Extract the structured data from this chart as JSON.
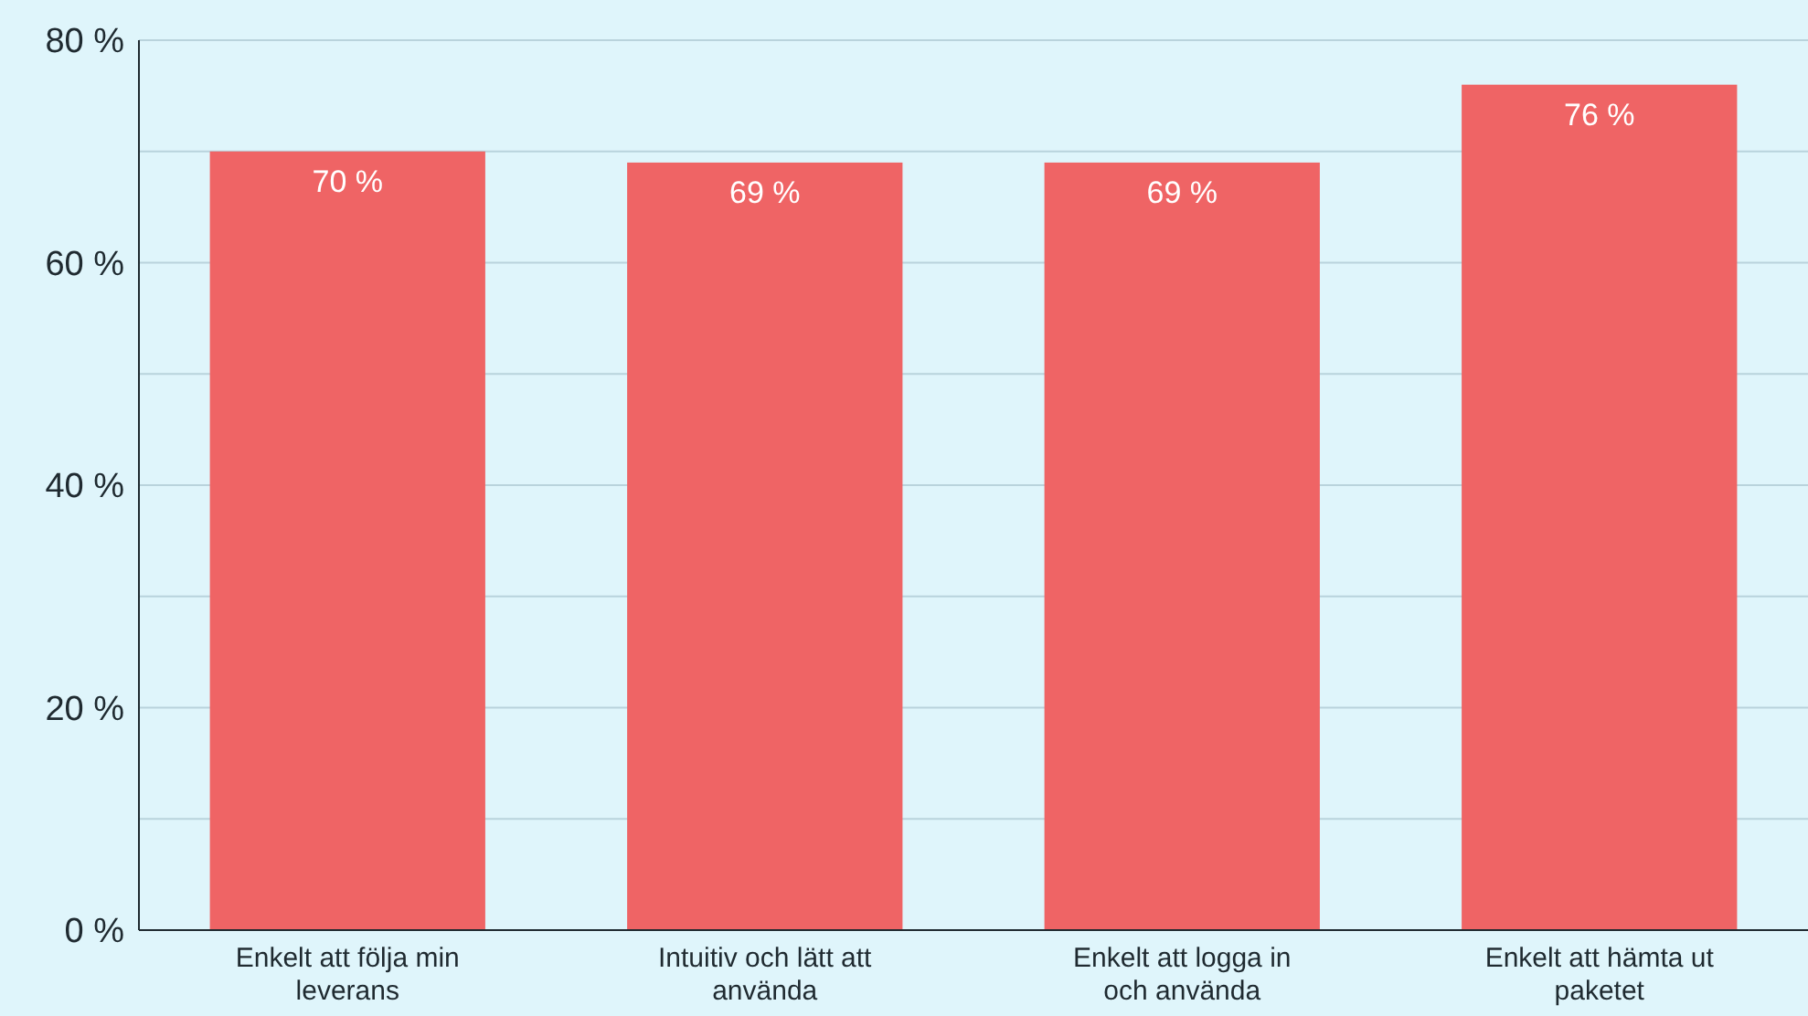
{
  "chart_data": {
    "type": "bar",
    "categories": [
      "Enkelt att följa min leverans",
      "Intuitiv och lätt att använda",
      "Enkelt att logga in och använda",
      "Enkelt att hämta ut paketet"
    ],
    "values": [
      70,
      69,
      69,
      76
    ],
    "value_labels": [
      "70 %",
      "69 %",
      "69 %",
      "76 %"
    ],
    "color": "#ef6465",
    "ylim": [
      0,
      80
    ],
    "yticks": [
      {
        "value": 0,
        "label": "0 %"
      },
      {
        "value": 10,
        "label": null
      },
      {
        "value": 20,
        "label": "20 %"
      },
      {
        "value": 30,
        "label": null
      },
      {
        "value": 40,
        "label": "40 %"
      },
      {
        "value": 50,
        "label": null
      },
      {
        "value": 60,
        "label": "60 %"
      },
      {
        "value": 70,
        "label": null
      },
      {
        "value": 80,
        "label": "80 %"
      }
    ],
    "grid": "y"
  }
}
